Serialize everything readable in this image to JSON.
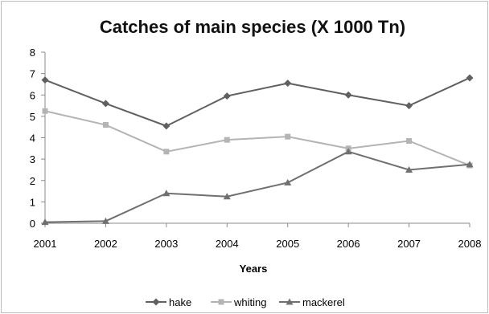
{
  "chart_data": {
    "type": "line",
    "title": "Catches of main species (X 1000 Tn)",
    "xlabel": "Years",
    "ylabel": "",
    "categories": [
      "2001",
      "2002",
      "2003",
      "2004",
      "2005",
      "2006",
      "2007",
      "2008"
    ],
    "ylim": [
      0,
      8
    ],
    "yticks": [
      "0",
      "1",
      "2",
      "3",
      "4",
      "5",
      "6",
      "7",
      "8"
    ],
    "grid": false,
    "legend": "bottom",
    "series": [
      {
        "name": "hake",
        "color": "#606060",
        "marker": "diamond",
        "values": [
          6.7,
          5.6,
          4.55,
          5.95,
          6.55,
          6.0,
          5.5,
          6.8
        ]
      },
      {
        "name": "whiting",
        "color": "#b4b4b4",
        "marker": "square",
        "values": [
          5.25,
          4.6,
          3.35,
          3.9,
          4.05,
          3.5,
          3.85,
          2.7
        ]
      },
      {
        "name": "mackerel",
        "color": "#707070",
        "marker": "triangle",
        "values": [
          0.05,
          0.1,
          1.4,
          1.25,
          1.9,
          3.35,
          2.5,
          2.75
        ]
      }
    ]
  }
}
